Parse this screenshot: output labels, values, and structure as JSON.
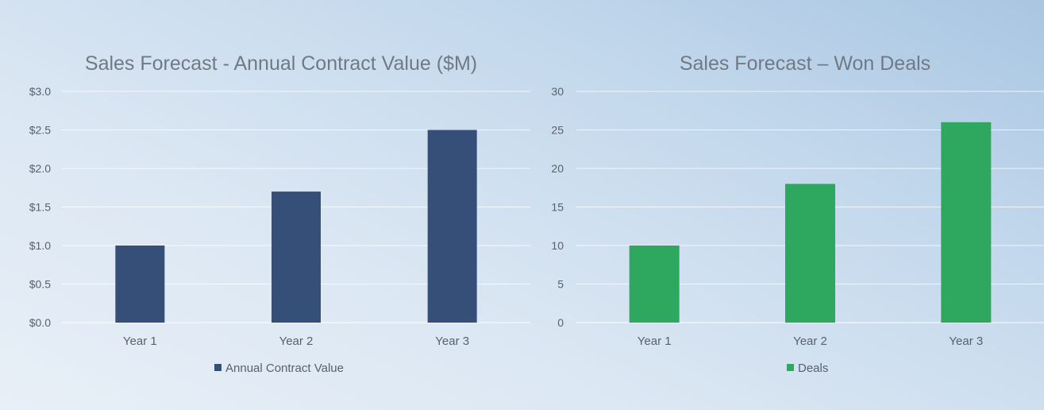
{
  "chart_data": [
    {
      "type": "bar",
      "title": "Sales Forecast - Annual Contract Value ($M)",
      "categories": [
        "Year 1",
        "Year 2",
        "Year 3"
      ],
      "series": [
        {
          "name": "Annual Contract Value",
          "values": [
            1.0,
            1.7,
            2.5
          ],
          "color": "#354f78"
        }
      ],
      "ylim": [
        0,
        3.0
      ],
      "yticks": [
        0,
        0.5,
        1.0,
        1.5,
        2.0,
        2.5,
        3.0
      ],
      "ytick_labels": [
        "$0.0",
        "$0.5",
        "$1.0",
        "$1.5",
        "$2.0",
        "$2.5",
        "$3.0"
      ],
      "grid": true,
      "legend": "bottom"
    },
    {
      "type": "bar",
      "title": "Sales Forecast – Won Deals",
      "categories": [
        "Year 1",
        "Year 2",
        "Year 3"
      ],
      "series": [
        {
          "name": "Deals",
          "values": [
            10,
            18,
            26
          ],
          "color": "#2ea85f"
        }
      ],
      "ylim": [
        0,
        30
      ],
      "yticks": [
        0,
        5,
        10,
        15,
        20,
        25,
        30
      ],
      "ytick_labels": [
        "0",
        "5",
        "10",
        "15",
        "20",
        "25",
        "30"
      ],
      "grid": true,
      "legend": "bottom"
    }
  ]
}
